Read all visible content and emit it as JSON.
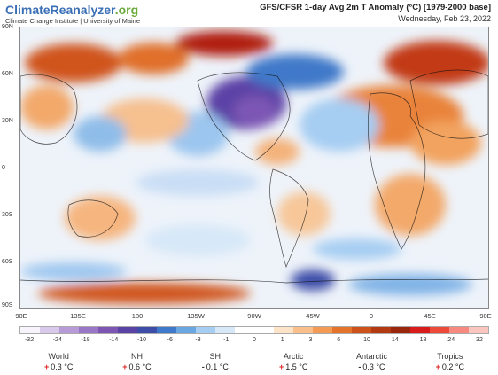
{
  "brand": {
    "name_part1": "ClimateReanalyzer",
    "name_part2": ".org",
    "subtitle": "Climate Change Institute | University of Maine"
  },
  "header": {
    "title": "GFS/CFSR 1-day Avg 2m T Anomaly (°C) [1979-2000 base]",
    "date": "Wednesday, Feb 23, 2022"
  },
  "map": {
    "lat_labels": [
      "90N",
      "60N",
      "30N",
      "0",
      "30S",
      "60S",
      "90S"
    ],
    "lon_labels": [
      "90E",
      "135E",
      "180",
      "135W",
      "90W",
      "45W",
      "0",
      "45E",
      "90E"
    ]
  },
  "colorbar": {
    "labels": [
      "-32",
      "-24",
      "-18",
      "-14",
      "-10",
      "-6",
      "-3",
      "-1",
      "0",
      "1",
      "3",
      "6",
      "10",
      "14",
      "18",
      "24",
      "32"
    ],
    "colors": [
      "#f7f4fb",
      "#d9c9ea",
      "#b79bd6",
      "#9a76c6",
      "#7d56b4",
      "#5b43a6",
      "#3e4ea8",
      "#3f79c9",
      "#6aa6e2",
      "#a6cdf2",
      "#d7e8f8",
      "#ffffff",
      "#ffffff",
      "#fde3c8",
      "#f9c08b",
      "#f39a55",
      "#e4742c",
      "#cc5219",
      "#b33a10",
      "#9a260b",
      "#d81c1c",
      "#ee4a3a",
      "#f78a80",
      "#fbc6c0"
    ]
  },
  "stats": [
    {
      "name": "World",
      "sign": "+",
      "value": "0.3 °C"
    },
    {
      "name": "NH",
      "sign": "+",
      "value": "0.6 °C"
    },
    {
      "name": "SH",
      "sign": "-",
      "value": "0.1 °C"
    },
    {
      "name": "Arctic",
      "sign": "+",
      "value": "1.5 °C"
    },
    {
      "name": "Antarctic",
      "sign": "-",
      "value": "0.3 °C"
    },
    {
      "name": "Tropics",
      "sign": "+",
      "value": "0.2 °C"
    }
  ]
}
